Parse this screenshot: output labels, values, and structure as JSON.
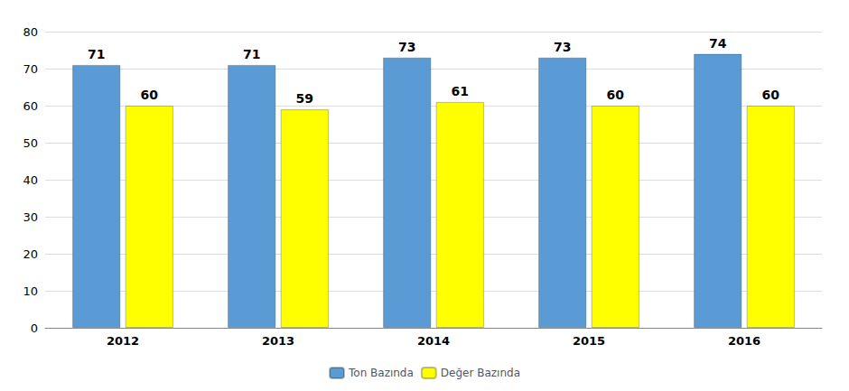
{
  "chart_data": {
    "type": "bar",
    "categories": [
      "2012",
      "2013",
      "2014",
      "2015",
      "2016"
    ],
    "series": [
      {
        "name": "Ton Bazında",
        "color": "#5B9BD5",
        "values": [
          71,
          71,
          73,
          73,
          74
        ]
      },
      {
        "name": "Değer Bazında",
        "color": "#FFFF00",
        "values": [
          60,
          59,
          61,
          60,
          60
        ]
      }
    ],
    "ylim": [
      0,
      80
    ],
    "yticks": [
      0,
      10,
      20,
      30,
      40,
      50,
      60,
      70,
      80
    ],
    "grid": true,
    "legend": "bottom",
    "data_labels": true
  }
}
